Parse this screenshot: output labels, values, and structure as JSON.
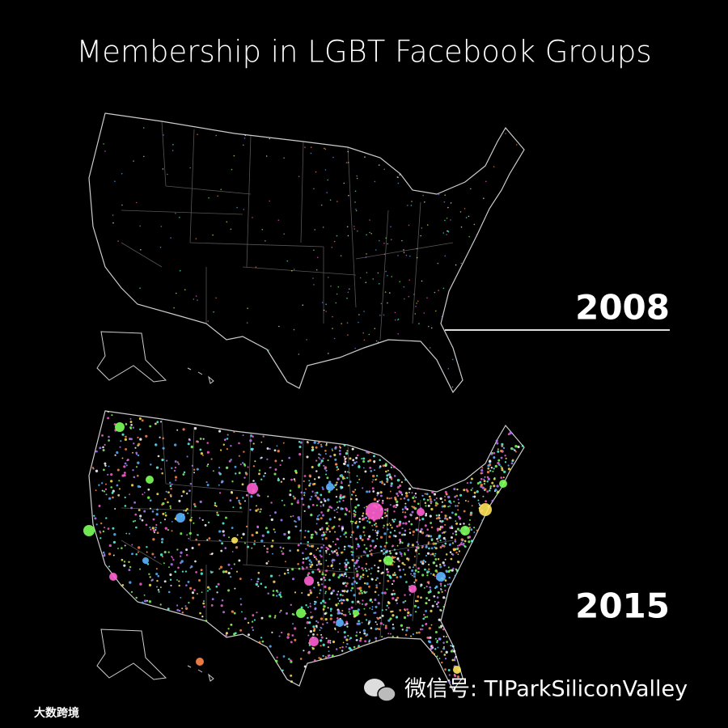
{
  "title": "Membership in LGBT Facebook Groups",
  "maps": [
    {
      "year": "2008"
    },
    {
      "year": "2015"
    }
  ],
  "watermark": {
    "account": "微信号: TIParkSiliconValley",
    "logo": "大数跨境"
  }
}
